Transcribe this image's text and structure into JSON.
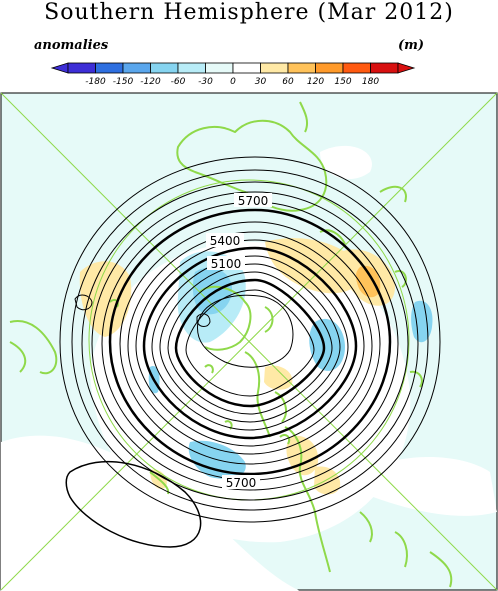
{
  "title": "Southern Hemisphere (Mar 2012)",
  "colorbar": {
    "left_label": "anomalies",
    "right_label": "(m)",
    "ticks": [
      "-180",
      "-150",
      "-120",
      "-60",
      "-30",
      "0",
      "30",
      "60",
      "120",
      "150",
      "180"
    ],
    "colors": [
      "#3d2ed6",
      "#2e6fe0",
      "#5aa6ec",
      "#86d4f0",
      "#b8ecf7",
      "#e6faf8",
      "#ffffff",
      "#ffe9a6",
      "#ffc25a",
      "#ff9a2a",
      "#ff5a10",
      "#d81010"
    ]
  },
  "map": {
    "contour_labels": [
      "5700",
      "5400",
      "5100",
      "5700"
    ],
    "colors": {
      "ocean": "#e6faf8",
      "coast": "#8fd94a",
      "contour": "#000000",
      "neg_light": "#b8ecf7",
      "neg_mid": "#86d4f0",
      "pos_light": "#ffe9a6",
      "pos_mid": "#ffc25a"
    }
  }
}
